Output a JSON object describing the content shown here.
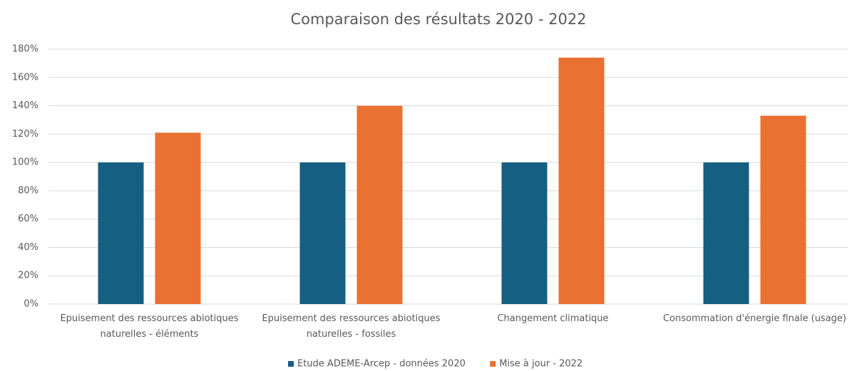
{
  "chart_data": {
    "type": "bar",
    "title": "Comparaison des résultats 2020 - 2022",
    "categories": [
      "Epuisement des ressources abiotiques naturelles - éléments",
      "Epuisement des ressources abiotiques naturelles - fossiles",
      "Changement climatique",
      "Consommation d'énergie finale (usage)"
    ],
    "series": [
      {
        "name": "Etude ADEME-Arcep - données 2020",
        "color": "#155f82",
        "values": [
          100,
          100,
          100,
          100
        ]
      },
      {
        "name": "Mise à jour - 2022",
        "color": "#e97132",
        "values": [
          121,
          140,
          174,
          133
        ]
      }
    ],
    "ylim": [
      0,
      180
    ],
    "yticks": [
      {
        "value": 0,
        "label": "0%"
      },
      {
        "value": 20,
        "label": "20%"
      },
      {
        "value": 40,
        "label": "40%"
      },
      {
        "value": 60,
        "label": "60%"
      },
      {
        "value": 80,
        "label": "80%"
      },
      {
        "value": 100,
        "label": "100%"
      },
      {
        "value": 120,
        "label": "120%"
      },
      {
        "value": 140,
        "label": "140%"
      },
      {
        "value": 160,
        "label": "160%"
      },
      {
        "value": 180,
        "label": "180%"
      }
    ],
    "grid": true,
    "legend": "bottom"
  }
}
